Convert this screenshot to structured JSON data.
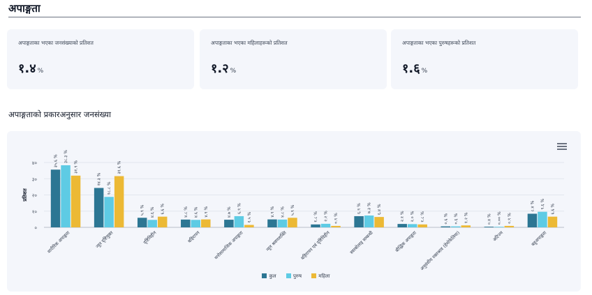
{
  "page": {
    "title": "अपाङ्गता"
  },
  "stats": [
    {
      "label": "अपाङ्गताका भएका जनसंख्याको प्रतिशत",
      "value": "१.४",
      "unit": "%"
    },
    {
      "label": "अपाङ्गताका भएका महिलाहरूको प्रतिशत",
      "value": "१.२",
      "unit": "%"
    },
    {
      "label": "अपाङ्गताका भएका पुरुषहरूको प्रतिशत",
      "value": "१.६",
      "unit": "%"
    }
  ],
  "section": {
    "title": "अपाङ्गताको प्रकारअनुसार जनसंख्या"
  },
  "menu": {
    "icon": "hamburger-menu-icon"
  },
  "chart_data": {
    "type": "bar",
    "ylabel": "प्रतिशत",
    "ylim": [
      0,
      40
    ],
    "yticks": [
      "०",
      "१०",
      "२०",
      "३०",
      "४०"
    ],
    "categories": [
      "शारीरिक अपाङ्गता",
      "न्यून दृष्टियुक्त",
      "दृष्टिविहीन",
      "बहिरापन",
      "मनोसामाजिक अपाङ्गता",
      "न्यून श्रवणशक्ति",
      "बहिरापन एवं दृष्टिविहीन",
      "स्वरबोलाइ सम्बन्धी",
      "बौद्धिक अपाङ्गता",
      "अनुवंशीय रक्तश्राव (हेमोफेलिया)",
      "अटिज्म",
      "बहुअपाङ्गता"
    ],
    "series": [
      {
        "name": "कुल",
        "color": "#2c7693",
        "values": [
          35.6,
          24.3,
          5.9,
          4.8,
          4.7,
          4.9,
          1.8,
          6.9,
          2.1,
          0.6,
          0.4,
          8.4
        ],
        "labels": [
          "३५.६ %",
          "२४.३ %",
          "५.९ %",
          "४.८ %",
          "४.७ %",
          "४.९ %",
          "१.८ %",
          "६.९ %",
          "२.१ %",
          "०.६ %",
          "०.४ %",
          "८.४ %"
        ]
      },
      {
        "name": "पुरुष",
        "color": "#5ecbe4",
        "values": [
          38.3,
          18.8,
          4.6,
          4.6,
          6.9,
          4.8,
          2.2,
          7.3,
          2.0,
          0.6,
          0.0,
          9.6
        ],
        "labels": [
          "३८.३ %",
          "१८.८ %",
          "४.६ %",
          "४.६ %",
          "६.९ %",
          "४.८ %",
          "२.२ %",
          "७.३ %",
          "२.० %",
          "०.६ %",
          "०.०० %",
          "९.६ %"
        ]
      },
      {
        "name": "महिला",
        "color": "#ecb935",
        "values": [
          31.9,
          31.6,
          6.6,
          4.9,
          1.5,
          5.9,
          0.9,
          6.4,
          1.8,
          1.2,
          0.9,
          6.6
        ],
        "labels": [
          "३१.९ %",
          "३१.६ %",
          "६.६ %",
          "४.९ %",
          "१.५ %",
          "५.९ %",
          "०.९ %",
          "६.४ %",
          "१.८ %",
          "१.२ %",
          "०.९ %",
          "६.६ %"
        ]
      }
    ],
    "grid": true,
    "legend": "bottom"
  }
}
